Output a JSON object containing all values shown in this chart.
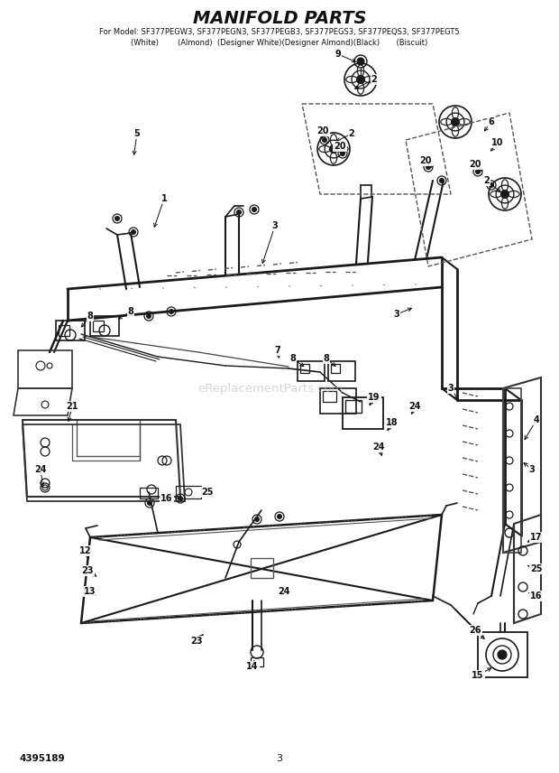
{
  "title": "MANIFOLD PARTS",
  "subtitle1": "For Model: SF377PEGW3, SF377PEGN3, SF377PEGB3, SF377PEGS3, SF377PEQS3, SF377PEGT5",
  "subtitle2": "(White)        (Almond)  (Designer White)(Designer Almond)(Black)       (Biscuit)",
  "part_number": "4395189",
  "page_number": "3",
  "bg_color": "#ffffff",
  "lc": "#1a1a1a",
  "watermark": "eReplacementParts.com",
  "title_fs": 14,
  "sub_fs": 6.5
}
